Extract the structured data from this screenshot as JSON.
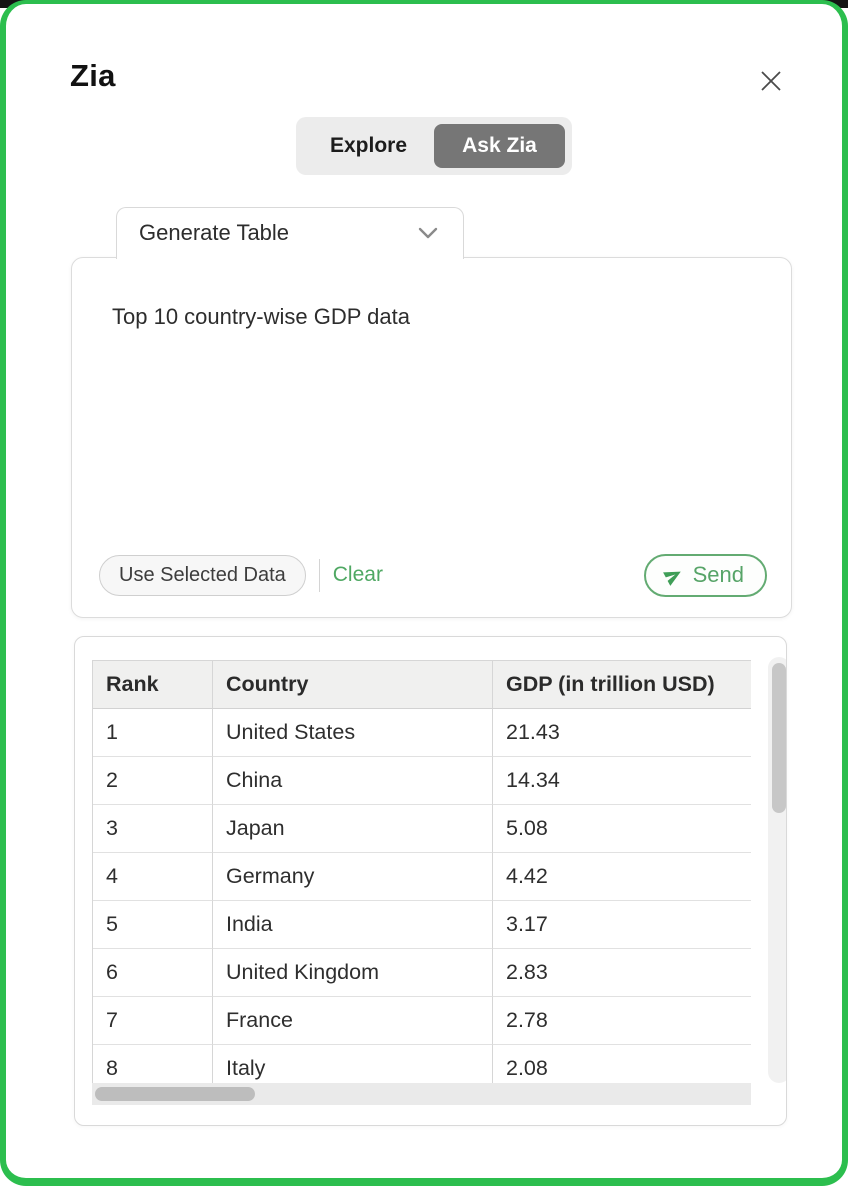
{
  "window": {
    "title": "Zia"
  },
  "toggle": {
    "options": [
      {
        "label": "Explore",
        "active": false
      },
      {
        "label": "Ask Zia",
        "active": true
      }
    ]
  },
  "generator": {
    "tab_label": "Generate Table",
    "prompt_text": "Top 10 country-wise GDP data",
    "use_selected_label": "Use Selected Data",
    "clear_label": "Clear",
    "send_label": "Send"
  },
  "result_table": {
    "headers": [
      "Rank",
      "Country",
      "GDP (in trillion USD)"
    ],
    "rows": [
      [
        "1",
        "United States",
        "21.43"
      ],
      [
        "2",
        "China",
        "14.34"
      ],
      [
        "3",
        "Japan",
        "5.08"
      ],
      [
        "4",
        "Germany",
        "4.42"
      ],
      [
        "5",
        "India",
        "3.17"
      ],
      [
        "6",
        "United Kingdom",
        "2.83"
      ],
      [
        "7",
        "France",
        "2.78"
      ],
      [
        "8",
        "Italy",
        "2.08"
      ]
    ]
  },
  "colors": {
    "frame_green": "#2cbe4e",
    "accent_green": "#4fa863",
    "send_border_green": "#63ab72",
    "ask_zia_active_bg": "#767676",
    "table_header_bg": "#f0f0ef"
  }
}
